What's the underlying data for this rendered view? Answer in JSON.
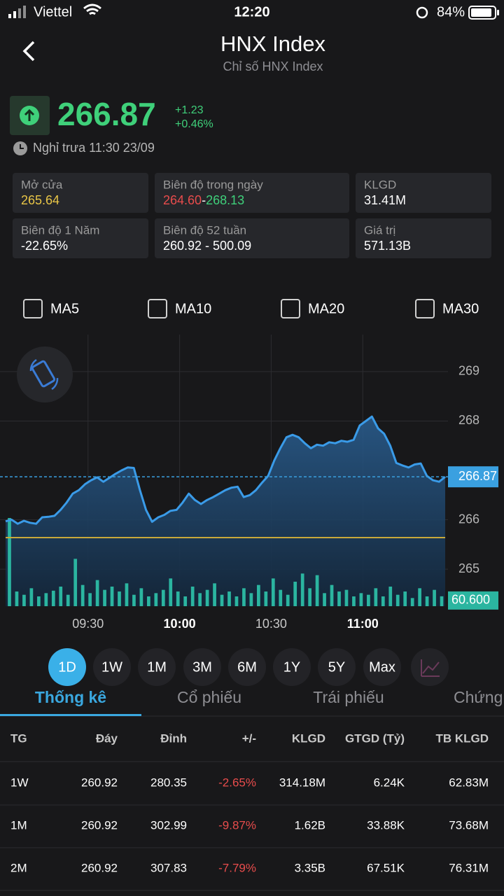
{
  "status_bar": {
    "carrier": "Viettel",
    "time": "12:20",
    "battery": "84%"
  },
  "header": {
    "title": "HNX Index",
    "subtitle": "Chỉ số HNX Index"
  },
  "quote": {
    "price": "266.87",
    "change": "+1.23",
    "change_pct": "+0.46%",
    "session": "Nghỉ trưa 11:30 23/09"
  },
  "stats": [
    {
      "label": "Mở cửa",
      "value": "265.64"
    },
    {
      "label": "Biên độ trong ngày",
      "low": "264.60",
      "separator": "-",
      "high": "268.13"
    },
    {
      "label": "KLGD",
      "value": "31.41M"
    },
    {
      "label": "Biên độ 1 Năm",
      "value": "-22.65%"
    },
    {
      "label": "Biên độ 52 tuần",
      "value": "260.92 - 500.09"
    },
    {
      "label": "Giá trị",
      "value": "571.13B"
    }
  ],
  "ma_options": [
    "MA5",
    "MA10",
    "MA20",
    "MA30"
  ],
  "chart_data": {
    "type": "line",
    "grid": true,
    "series": [
      {
        "color": "#3a9be8",
        "x": [
          3,
          5,
          7,
          9,
          11,
          13,
          15,
          17,
          19,
          21,
          23,
          25,
          27,
          29,
          31,
          33,
          35,
          37,
          39,
          41,
          43,
          45,
          47,
          49,
          51,
          53,
          55,
          57,
          59,
          61,
          63,
          65,
          67,
          69,
          71,
          73,
          75,
          77,
          79,
          81,
          83,
          85,
          87,
          89,
          91,
          93,
          95,
          97,
          99,
          101,
          103,
          105,
          107,
          109,
          111,
          113,
          115,
          117,
          119,
          121,
          123,
          125,
          127,
          129,
          131,
          133,
          135,
          137,
          139,
          141,
          143,
          145,
          147
        ],
        "values": [
          265.97,
          266.0,
          265.92,
          265.98,
          265.94,
          265.92,
          266.05,
          266.06,
          266.08,
          266.2,
          266.35,
          266.53,
          266.6,
          266.72,
          266.8,
          266.86,
          266.77,
          266.85,
          266.93,
          267.0,
          267.06,
          267.05,
          266.6,
          266.2,
          265.96,
          266.05,
          266.1,
          266.18,
          266.2,
          266.35,
          266.53,
          266.4,
          266.32,
          266.4,
          266.46,
          266.53,
          266.6,
          266.65,
          266.67,
          266.46,
          266.5,
          266.6,
          266.75,
          266.89,
          267.2,
          267.45,
          267.67,
          267.72,
          267.67,
          267.55,
          267.45,
          267.52,
          267.5,
          267.57,
          267.55,
          267.6,
          267.58,
          267.62,
          267.91,
          268.0,
          268.09,
          267.85,
          267.74,
          267.5,
          267.15,
          267.1,
          267.06,
          267.12,
          267.14,
          266.89,
          266.8,
          266.77,
          266.87
        ]
      }
    ],
    "xlim": [
      3,
      147
    ],
    "xticks": [
      {
        "value": 30,
        "label": "09:30"
      },
      {
        "value": 60,
        "label": "10:00"
      },
      {
        "value": 90,
        "label": "10:30"
      },
      {
        "value": 120,
        "label": "11:00"
      }
    ],
    "ylim": [
      264.25,
      269.75
    ],
    "yticks": [
      265,
      266,
      268,
      269
    ],
    "last_price": 266.87,
    "reference_line": 265.64,
    "reference_color": "#c9a93a",
    "volume": {
      "color": "#2bb5a0",
      "y2lim": [
        0,
        600
      ],
      "values": [
        540,
        90,
        70,
        110,
        60,
        80,
        95,
        120,
        70,
        290,
        130,
        80,
        160,
        100,
        120,
        90,
        140,
        70,
        110,
        60,
        80,
        100,
        170,
        90,
        60,
        120,
        80,
        100,
        140,
        70,
        90,
        60,
        110,
        80,
        130,
        90,
        170,
        100,
        70,
        150,
        200,
        110,
        190,
        80,
        130,
        90,
        100,
        60,
        80,
        70,
        110,
        60,
        120,
        70,
        90,
        50,
        110,
        60,
        100,
        60.6
      ],
      "last": {
        "value": 60.6,
        "label": "60.600"
      }
    }
  },
  "ranges": [
    "1D",
    "1W",
    "1M",
    "3M",
    "6M",
    "1Y",
    "5Y",
    "Max"
  ],
  "selected_range": 0,
  "tabs": [
    "Thống kê",
    "Cổ phiếu",
    "Trái phiếu",
    "Chứng"
  ],
  "selected_tab": 0,
  "table": {
    "columns": [
      "TG",
      "Đáy",
      "Đỉnh",
      "+/-",
      "KLGD",
      "GTGD (Tỷ)",
      "TB KLGD"
    ],
    "rows": [
      [
        "1W",
        "260.92",
        "280.35",
        "-2.65%",
        "314.18M",
        "6.24K",
        "62.83M"
      ],
      [
        "1M",
        "260.92",
        "302.99",
        "-9.87%",
        "1.62B",
        "33.88K",
        "73.68M"
      ],
      [
        "2M",
        "260.92",
        "307.83",
        "-7.79%",
        "3.35B",
        "67.51K",
        "76.31M"
      ]
    ]
  }
}
